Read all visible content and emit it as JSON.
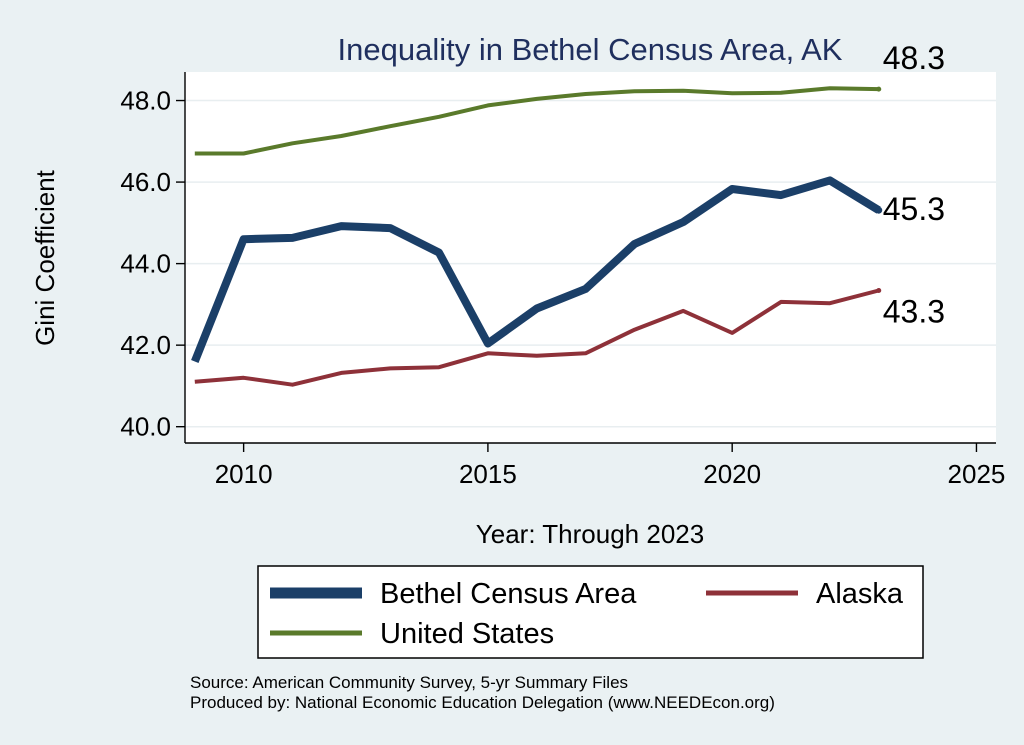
{
  "chart_data": {
    "type": "line",
    "title": "Inequality in Bethel Census Area, AK",
    "xlabel": "Year: Through 2023",
    "ylabel": "Gini Coefficient",
    "xlim": [
      2008.8,
      2025.4
    ],
    "ylim": [
      39.6,
      48.7
    ],
    "x_ticks": [
      2010,
      2015,
      2020,
      2025
    ],
    "y_ticks": [
      40.0,
      42.0,
      44.0,
      46.0,
      48.0
    ],
    "x_tick_labels": [
      "2010",
      "2015",
      "2020",
      "2025"
    ],
    "y_tick_labels": [
      "40.0",
      "42.0",
      "44.0",
      "46.0",
      "48.0"
    ],
    "grid": true,
    "legend_position": "bottom",
    "x": [
      2009,
      2010,
      2011,
      2012,
      2013,
      2014,
      2015,
      2016,
      2017,
      2018,
      2019,
      2020,
      2021,
      2022,
      2023
    ],
    "series": [
      {
        "name": "Bethel Census Area",
        "color": "#1b3f68",
        "values": [
          41.6,
          44.6,
          44.63,
          44.92,
          44.87,
          44.27,
          42.04,
          42.9,
          43.38,
          44.48,
          45.02,
          45.83,
          45.68,
          46.04,
          45.31
        ],
        "end_label": "45.3"
      },
      {
        "name": "Alaska",
        "color": "#8e3139",
        "values": [
          41.1,
          41.2,
          41.03,
          41.32,
          41.43,
          41.46,
          41.8,
          41.74,
          41.8,
          42.38,
          42.84,
          42.3,
          43.06,
          43.03,
          43.34
        ],
        "end_label": "43.3"
      },
      {
        "name": "United States",
        "color": "#5a7a2b",
        "values": [
          46.7,
          46.7,
          46.95,
          47.13,
          47.37,
          47.6,
          47.88,
          48.04,
          48.16,
          48.23,
          48.24,
          48.18,
          48.19,
          48.3,
          48.28
        ],
        "end_label": "48.3"
      }
    ],
    "source_lines": [
      "Source: American Community Survey, 5-yr Summary Files",
      "Produced by: National Economic Education Delegation (www.NEEDEcon.org)"
    ]
  }
}
